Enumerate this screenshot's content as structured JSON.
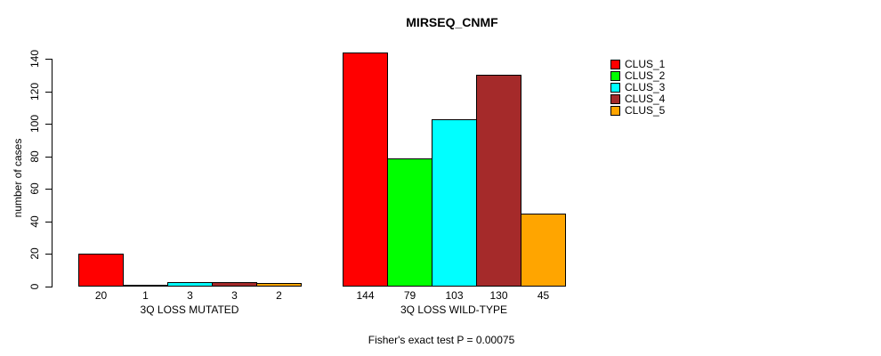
{
  "chart_data": {
    "type": "bar",
    "title": "MIRSEQ_CNMF",
    "ylabel": "number of cases",
    "xlabel": "",
    "ylim": [
      0,
      140
    ],
    "yticks": [
      0,
      20,
      40,
      60,
      80,
      100,
      120,
      140
    ],
    "grid": false,
    "legend_position": "right",
    "series_names": [
      "CLUS_1",
      "CLUS_2",
      "CLUS_3",
      "CLUS_4",
      "CLUS_5"
    ],
    "series_colors": [
      "#ff0000",
      "#00ff00",
      "#00ffff",
      "#a52a2a",
      "#ffa500"
    ],
    "groups": [
      {
        "label": "3Q LOSS MUTATED",
        "values": [
          20,
          1,
          3,
          3,
          2
        ]
      },
      {
        "label": "3Q LOSS WILD-TYPE",
        "values": [
          144,
          79,
          103,
          130,
          45
        ]
      }
    ],
    "annotation": "Fisher's exact test P = 0.00075",
    "background_color": "#ffffff",
    "text_color": "#000000"
  }
}
